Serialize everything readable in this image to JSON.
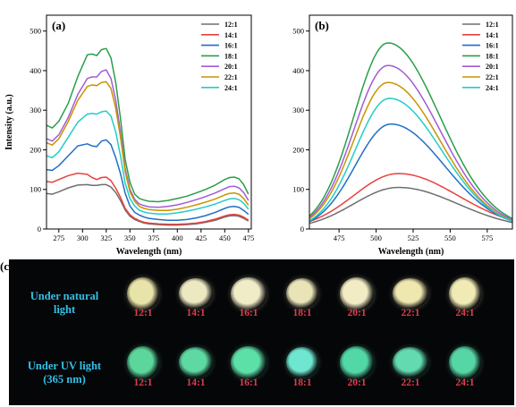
{
  "chart_data": [
    {
      "panel": "(a)",
      "type": "line",
      "xlabel": "Wavelength (nm)",
      "ylabel": "Intensity (a.u.)",
      "xlim": [
        262,
        478
      ],
      "ylim": [
        0,
        540
      ],
      "xticks": [
        275,
        300,
        325,
        350,
        375,
        400,
        425,
        450,
        475
      ],
      "yticks": [
        0,
        100,
        200,
        300,
        400,
        500
      ],
      "legend": "top-right",
      "x": [
        262,
        268,
        275,
        285,
        295,
        305,
        310,
        315,
        320,
        325,
        330,
        335,
        340,
        345,
        350,
        355,
        360,
        365,
        370,
        380,
        390,
        400,
        410,
        420,
        430,
        440,
        450,
        455,
        460,
        465,
        470,
        475
      ],
      "series": [
        {
          "name": "12:1",
          "color": "#6e6e6e",
          "values": [
            90,
            88,
            94,
            104,
            111,
            112,
            110,
            110,
            112,
            112,
            106,
            92,
            72,
            48,
            32,
            24,
            19,
            15,
            13,
            11,
            10,
            10,
            11,
            13,
            17,
            22,
            30,
            33,
            34,
            32,
            27,
            20
          ]
        },
        {
          "name": "14:1",
          "color": "#e8413c",
          "values": [
            120,
            118,
            125,
            135,
            141,
            138,
            130,
            125,
            130,
            131,
            122,
            103,
            80,
            52,
            36,
            27,
            21,
            17,
            15,
            13,
            12,
            12,
            13,
            15,
            19,
            25,
            33,
            36,
            37,
            35,
            30,
            22
          ]
        },
        {
          "name": "16:1",
          "color": "#1f6fc4",
          "values": [
            150,
            148,
            160,
            185,
            210,
            215,
            210,
            208,
            222,
            225,
            213,
            180,
            140,
            90,
            58,
            42,
            35,
            30,
            27,
            24,
            22,
            22,
            24,
            28,
            34,
            42,
            52,
            56,
            57,
            55,
            47,
            37
          ]
        },
        {
          "name": "18:1",
          "color": "#2a9e4a",
          "values": [
            262,
            255,
            272,
            318,
            385,
            440,
            442,
            438,
            453,
            456,
            432,
            370,
            280,
            175,
            118,
            88,
            77,
            73,
            70,
            69,
            72,
            77,
            83,
            91,
            100,
            111,
            125,
            130,
            131,
            127,
            112,
            88
          ]
        },
        {
          "name": "20:1",
          "color": "#a25bd6",
          "values": [
            228,
            222,
            238,
            282,
            340,
            380,
            384,
            384,
            398,
            402,
            380,
            325,
            245,
            152,
            100,
            75,
            63,
            59,
            56,
            55,
            57,
            61,
            67,
            74,
            82,
            91,
            102,
            107,
            108,
            104,
            92,
            72
          ]
        },
        {
          "name": "22:1",
          "color": "#c89400",
          "values": [
            218,
            212,
            228,
            272,
            325,
            360,
            364,
            362,
            370,
            372,
            355,
            305,
            232,
            145,
            94,
            70,
            57,
            52,
            49,
            47,
            47,
            50,
            55,
            61,
            68,
            76,
            86,
            90,
            91,
            88,
            77,
            60
          ]
        },
        {
          "name": "24:1",
          "color": "#22cdc8",
          "values": [
            185,
            180,
            195,
            232,
            270,
            290,
            292,
            290,
            296,
            298,
            285,
            245,
            185,
            115,
            77,
            58,
            47,
            43,
            40,
            38,
            38,
            41,
            45,
            50,
            56,
            63,
            72,
            76,
            77,
            74,
            65,
            50
          ]
        }
      ]
    },
    {
      "panel": "(b)",
      "type": "line",
      "xlabel": "Wavelength (nm)",
      "ylabel": "",
      "xlim": [
        455,
        592
      ],
      "ylim": [
        0,
        540
      ],
      "xticks": [
        475,
        500,
        525,
        550,
        575
      ],
      "yticks": [
        0,
        100,
        200,
        300,
        400,
        500
      ],
      "legend": "top-right",
      "curve_model": "gaussian",
      "x_range": [
        455,
        592
      ],
      "series": [
        {
          "name": "12:1",
          "color": "#6e6e6e",
          "peak_x": 515,
          "peak_y": 105,
          "width_left": 30,
          "width_right": 40
        },
        {
          "name": "14:1",
          "color": "#e8413c",
          "peak_x": 515,
          "peak_y": 140,
          "width_left": 30,
          "width_right": 40
        },
        {
          "name": "16:1",
          "color": "#1f6fc4",
          "peak_x": 510,
          "peak_y": 265,
          "width_left": 24,
          "width_right": 36
        },
        {
          "name": "18:1",
          "color": "#2a9e4a",
          "peak_x": 508,
          "peak_y": 470,
          "width_left": 23,
          "width_right": 35
        },
        {
          "name": "20:1",
          "color": "#a25bd6",
          "peak_x": 508,
          "peak_y": 413,
          "width_left": 23,
          "width_right": 35
        },
        {
          "name": "22:1",
          "color": "#c89400",
          "peak_x": 508,
          "peak_y": 370,
          "width_left": 23,
          "width_right": 35
        },
        {
          "name": "24:1",
          "color": "#22cdc8",
          "peak_x": 509,
          "peak_y": 330,
          "width_left": 23,
          "width_right": 35
        }
      ]
    }
  ],
  "photo_panel": {
    "label": "(c)",
    "row1_caption": "Under natural light",
    "row2_caption": "Under UV light (365 nm)",
    "ratios": [
      "12:1",
      "14:1",
      "16:1",
      "18:1",
      "20:1",
      "22:1",
      "24:1"
    ],
    "row1_colors": [
      "#e8e3a8",
      "#ece8c2",
      "#f0ecc8",
      "#e9e4b8",
      "#f2ecc4",
      "#efe7b0",
      "#f0eab4"
    ],
    "row2_colors": [
      "#5cd69a",
      "#5ed9a4",
      "#5ddfa8",
      "#6fe6cf",
      "#52d8a6",
      "#63dab0",
      "#55d6a4"
    ]
  }
}
